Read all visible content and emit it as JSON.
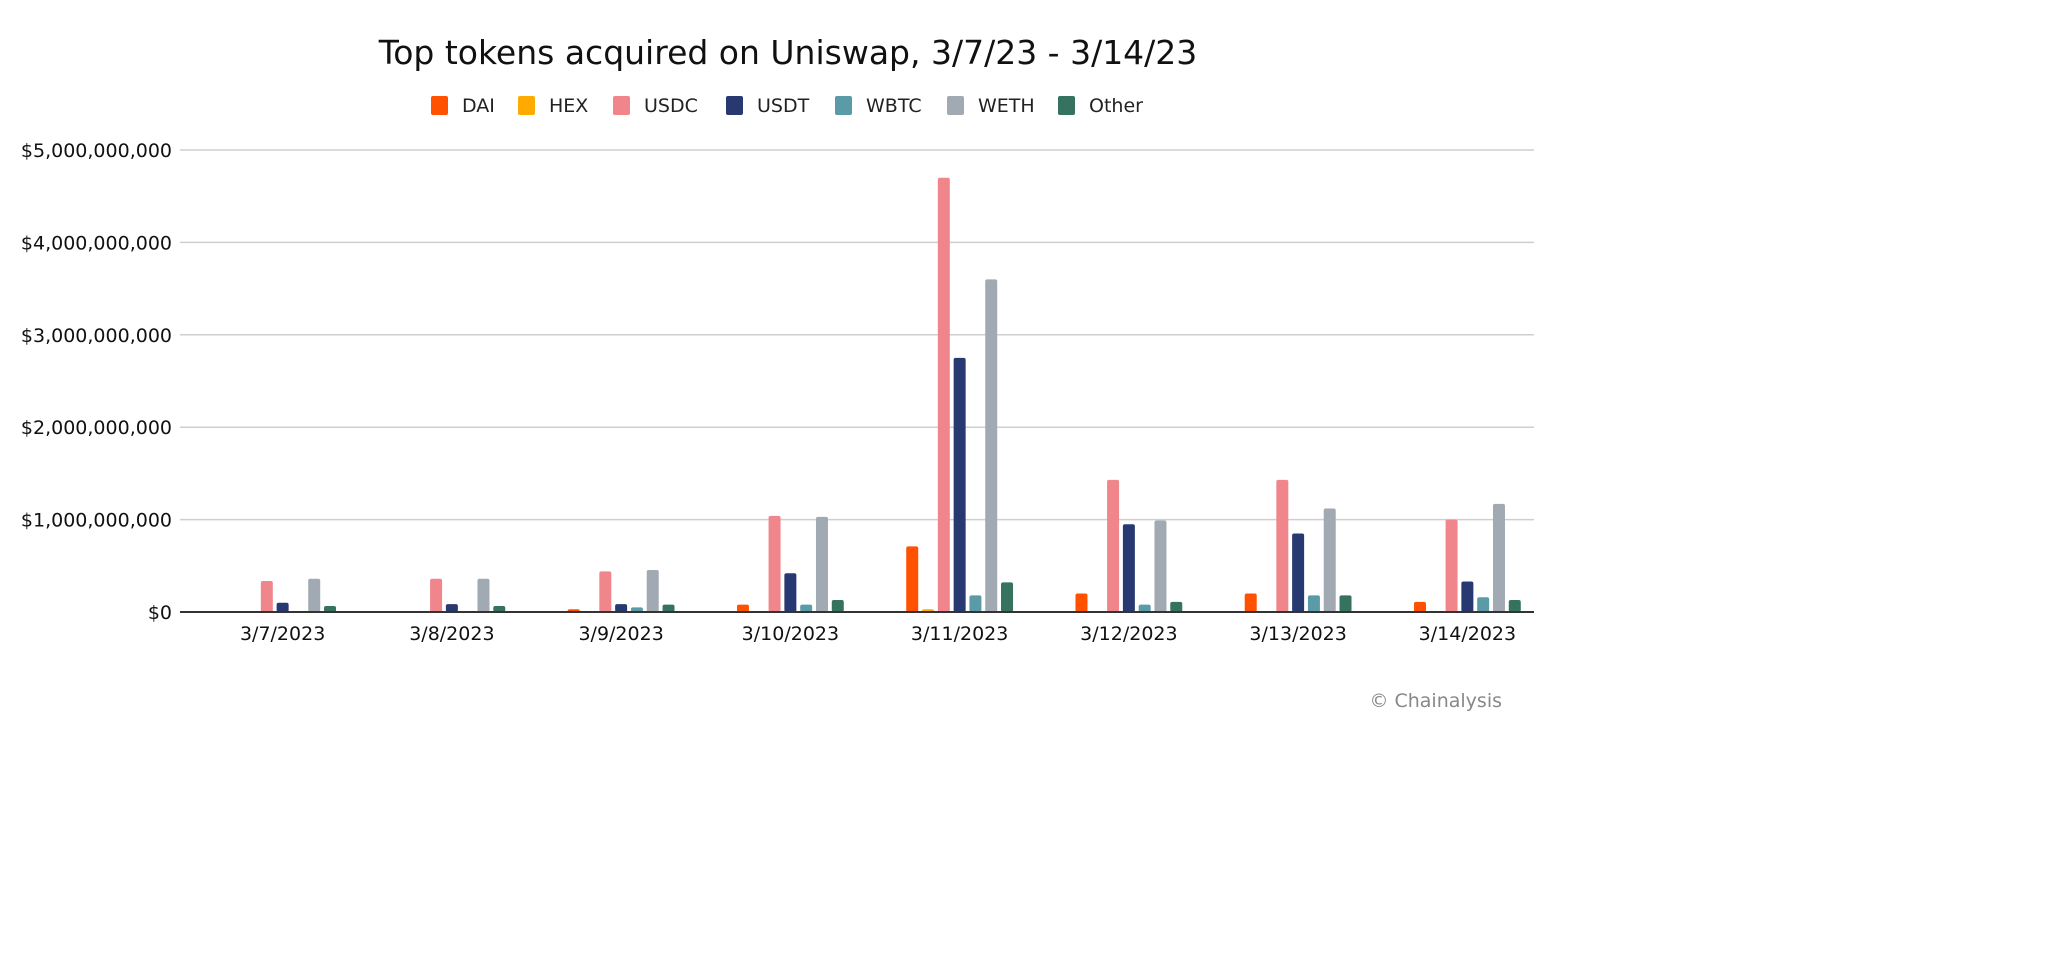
{
  "chart_data": {
    "type": "bar",
    "title": "Top tokens acquired on Uniswap, 3/7/23 - 3/14/23",
    "xlabel": "",
    "ylabel": "",
    "ylim": [
      0,
      5000000000
    ],
    "yticks": [
      0,
      1000000000,
      2000000000,
      3000000000,
      4000000000,
      5000000000
    ],
    "ytick_labels": [
      "$0",
      "$1,000,000,000",
      "$2,000,000,000",
      "$3,000,000,000",
      "$4,000,000,000",
      "$5,000,000,000"
    ],
    "grid": true,
    "legend_position": "top-center",
    "categories": [
      "3/7/2023",
      "3/8/2023",
      "3/9/2023",
      "3/10/2023",
      "3/11/2023",
      "3/12/2023",
      "3/13/2023",
      "3/14/2023"
    ],
    "series": [
      {
        "name": "DAI",
        "color": "#FF5100",
        "values": [
          5000000,
          5000000,
          30000000,
          80000000,
          710000000,
          200000000,
          200000000,
          110000000
        ]
      },
      {
        "name": "HEX",
        "color": "#FFAA00",
        "values": [
          3000000,
          3000000,
          5000000,
          5000000,
          30000000,
          5000000,
          3000000,
          5000000
        ]
      },
      {
        "name": "USDC",
        "color": "#F0868C",
        "values": [
          335000000,
          360000000,
          440000000,
          1040000000,
          4700000000,
          1430000000,
          1430000000,
          1000000000
        ]
      },
      {
        "name": "USDT",
        "color": "#283870",
        "values": [
          100000000,
          85000000,
          85000000,
          420000000,
          2750000000,
          950000000,
          850000000,
          330000000
        ]
      },
      {
        "name": "WBTC",
        "color": "#5B9BA8",
        "values": [
          5000000,
          10000000,
          50000000,
          80000000,
          180000000,
          80000000,
          180000000,
          160000000
        ]
      },
      {
        "name": "WETH",
        "color": "#A1A9B3",
        "values": [
          360000000,
          360000000,
          455000000,
          1030000000,
          3600000000,
          990000000,
          1120000000,
          1170000000
        ]
      },
      {
        "name": "Other",
        "color": "#35725F",
        "values": [
          65000000,
          65000000,
          80000000,
          130000000,
          320000000,
          110000000,
          180000000,
          130000000
        ]
      }
    ]
  },
  "credit": "© Chainalysis"
}
